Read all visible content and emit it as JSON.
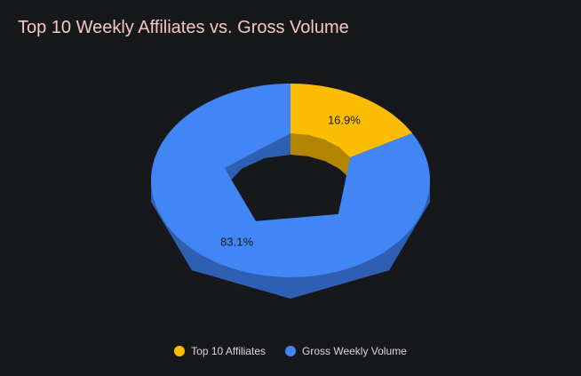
{
  "chart_data": {
    "type": "pie",
    "title": "Top 10 Weekly Affiliates vs. Gross Volume",
    "categories": [
      "Top 10 Affiliates",
      "Gross Weekly Volume"
    ],
    "values": [
      16.9,
      83.1
    ],
    "labels": [
      "16.9%",
      "83.1%"
    ],
    "colors": [
      "#fbbc04",
      "#4285f4"
    ],
    "side_colors": [
      "#b28400",
      "#2f5fb3"
    ],
    "label_colors": [
      "#1a1a1a",
      "#1a1a1a"
    ],
    "donut": true,
    "three_d": true,
    "legend": {
      "position": "bottom",
      "entries": [
        "Top 10 Affiliates",
        "Gross Weekly Volume"
      ]
    }
  }
}
